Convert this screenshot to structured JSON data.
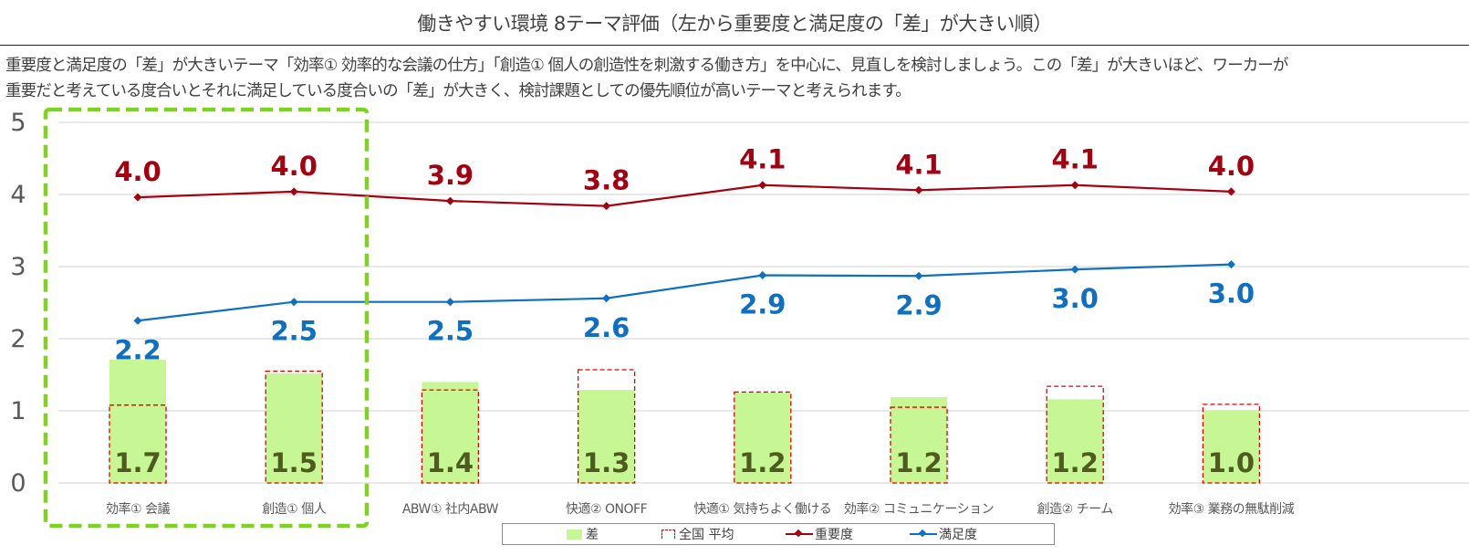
{
  "title": "働きやすい環境 8テーマ評価（左から重要度と満足度の「差」が大きい順）",
  "description": {
    "line1": "重要度と満足度の「差」が大きいテーマ「効率① 効率的な会議の仕方」「創造① 個人の創造性を刺激する働き方」を中心に、見直しを検討しましょう。この「差」が大きいほど、ワーカーが",
    "line2": "重要だと考えている度合いとそれに満足している度合いの「差」が大きく、検討課題としての優先順位が高いテーマと考えられます。"
  },
  "colors": {
    "gap_bar": "#c6f794",
    "gap_label": "#4f5a1f",
    "national_avg": "#e00000",
    "importance": "#a50010",
    "satisfaction": "#0f6fc0",
    "highlight_box": "#7ed321",
    "gridline": "#d9d9d9",
    "axis_text": "#595959"
  },
  "chart_data": {
    "type": "bar",
    "title": "働きやすい環境 8テーマ評価（左から重要度と満足度の「差」が大きい順）",
    "xlabel": "",
    "ylabel": "",
    "ylim": [
      0,
      5
    ],
    "yticks": [
      "0",
      "1",
      "2",
      "3",
      "4",
      "5"
    ],
    "grid": true,
    "legend_position": "bottom",
    "categories": [
      "効率① 会議",
      "創造① 個人",
      "ABW① 社内ABW",
      "快適② ONOFF",
      "快適① 気持ちよく働ける",
      "効率② コミュニケーション",
      "創造② チーム",
      "効率③ 業務の無駄削減"
    ],
    "highlighted_categories": [
      0,
      1
    ],
    "series": [
      {
        "name": "差",
        "type": "bar",
        "values": [
          1.71,
          1.52,
          1.4,
          1.29,
          1.25,
          1.19,
          1.16,
          1.01
        ],
        "labels": [
          "1.7",
          "1.5",
          "1.4",
          "1.3",
          "1.2",
          "1.2",
          "1.2",
          "1.0"
        ]
      },
      {
        "name": "全国 平均",
        "type": "bar-outline",
        "values": [
          1.08,
          1.55,
          1.29,
          1.57,
          1.26,
          1.05,
          1.34,
          1.09
        ]
      },
      {
        "name": "重要度",
        "type": "line",
        "values": [
          3.96,
          4.04,
          3.91,
          3.84,
          4.13,
          4.06,
          4.13,
          4.04
        ],
        "labels": [
          "4.0",
          "4.0",
          "3.9",
          "3.8",
          "4.1",
          "4.1",
          "4.1",
          "4.0"
        ]
      },
      {
        "name": "満足度",
        "type": "line",
        "values": [
          2.25,
          2.51,
          2.51,
          2.56,
          2.88,
          2.87,
          2.96,
          3.03
        ],
        "labels": [
          "2.2",
          "2.5",
          "2.5",
          "2.6",
          "2.9",
          "2.9",
          "3.0",
          "3.0"
        ]
      }
    ]
  },
  "legend": {
    "items": [
      "差",
      "全国 平均",
      "重要度",
      "満足度"
    ]
  }
}
